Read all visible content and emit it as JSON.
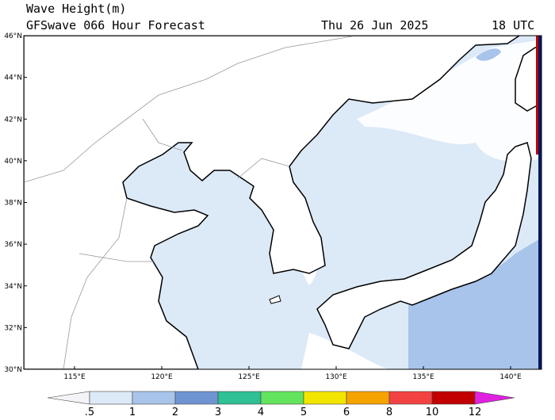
{
  "header": {
    "title": "Wave Height(m)",
    "subtitle": "GFSwave 066 Hour Forecast",
    "date": "Thu 26 Jun 2025",
    "time": "18 UTC"
  },
  "lat_labels": [
    "30°N",
    "32°N",
    "34°N",
    "36°N",
    "38°N",
    "40°N",
    "42°N",
    "44°N",
    "46°N"
  ],
  "lon_labels": [
    "115°E",
    "120°E",
    "125°E",
    "130°E",
    "135°E",
    "140°E"
  ],
  "colorbar": {
    "labels": [
      ".5",
      "1",
      "2",
      "3",
      "4",
      "5",
      "6",
      "8",
      "10",
      "12"
    ],
    "colors": [
      "#f4f4f8",
      "#dce9f7",
      "#a9c4ea",
      "#6f94d2",
      "#2fc095",
      "#63e45e",
      "#f2e600",
      "#f5a300",
      "#f24242",
      "#c20000",
      "#e021e0"
    ]
  }
}
